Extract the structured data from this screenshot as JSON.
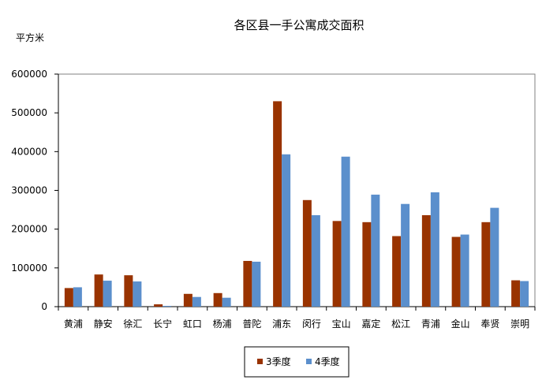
{
  "chart_data": {
    "type": "bar",
    "title": "各区县一手公寓成交面积",
    "ylabel": "平方米",
    "xlabel": "",
    "ylim": [
      0,
      600000
    ],
    "yticks": [
      0,
      100000,
      200000,
      300000,
      400000,
      500000,
      600000
    ],
    "grid": false,
    "legend_position": "bottom",
    "categories": [
      "黄浦",
      "静安",
      "徐汇",
      "长宁",
      "虹口",
      "杨浦",
      "普陀",
      "浦东",
      "闵行",
      "宝山",
      "嘉定",
      "松江",
      "青浦",
      "金山",
      "奉贤",
      "崇明"
    ],
    "series": [
      {
        "name": "3季度",
        "color": "#993300",
        "values": [
          48000,
          83000,
          81000,
          6000,
          33000,
          35000,
          118000,
          530000,
          275000,
          221000,
          218000,
          182000,
          236000,
          180000,
          218000,
          68000
        ]
      },
      {
        "name": "4季度",
        "color": "#5B8FCC",
        "values": [
          50000,
          67000,
          65000,
          2000,
          25000,
          23000,
          116000,
          393000,
          236000,
          387000,
          289000,
          265000,
          295000,
          186000,
          255000,
          66000
        ]
      }
    ]
  }
}
